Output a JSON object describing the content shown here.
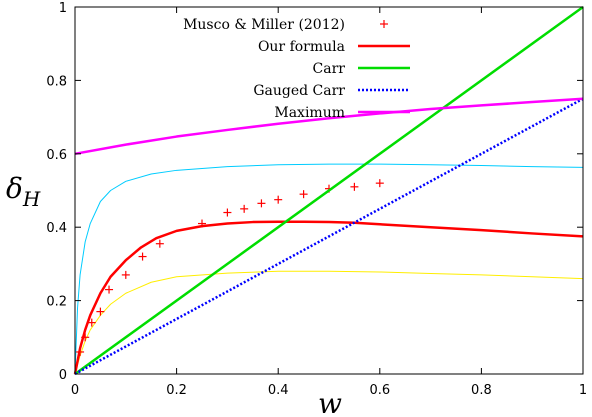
{
  "chart_data": {
    "type": "line",
    "xlabel": "w",
    "ylabel": "δ",
    "ylabel_sub": "H",
    "xlim": [
      0,
      1
    ],
    "ylim": [
      0,
      1
    ],
    "x_ticks": [
      0,
      0.2,
      0.4,
      0.6,
      0.8,
      1
    ],
    "x_tick_labels": [
      "0",
      "0.2",
      "0.4",
      "0.6",
      "0.8",
      "1"
    ],
    "y_ticks": [
      0,
      0.2,
      0.4,
      0.6,
      0.8,
      1
    ],
    "y_tick_labels": [
      "0",
      "0.2",
      "0.4",
      "0.6",
      "0.8",
      "1"
    ],
    "grid": false,
    "legend_position": "top-right",
    "series": [
      {
        "name": "Musco & Miller (2012)",
        "kind": "scatter",
        "color": "#ff0000",
        "x": [
          0.01,
          0.02,
          0.033,
          0.05,
          0.067,
          0.1,
          0.133,
          0.167,
          0.25,
          0.3,
          0.333,
          0.367,
          0.4,
          0.45,
          0.5,
          0.55,
          0.6
        ],
        "y": [
          0.06,
          0.1,
          0.14,
          0.17,
          0.23,
          0.27,
          0.32,
          0.355,
          0.41,
          0.44,
          0.45,
          0.465,
          0.475,
          0.49,
          0.505,
          0.51,
          0.52
        ]
      },
      {
        "name": "Our formula",
        "kind": "line",
        "color": "#ff0000",
        "x": [
          0,
          0.01,
          0.02,
          0.03,
          0.05,
          0.07,
          0.1,
          0.13,
          0.16,
          0.2,
          0.25,
          0.3,
          0.35,
          0.4,
          0.45,
          0.5,
          0.55,
          0.6,
          0.7,
          0.8,
          0.9,
          1.0
        ],
        "y": [
          0,
          0.07,
          0.12,
          0.16,
          0.22,
          0.265,
          0.31,
          0.345,
          0.37,
          0.39,
          0.403,
          0.41,
          0.414,
          0.415,
          0.415,
          0.414,
          0.412,
          0.408,
          0.4,
          0.392,
          0.383,
          0.375
        ]
      },
      {
        "name": "Carr",
        "kind": "line",
        "color": "#00dd00",
        "x": [
          0,
          1
        ],
        "y": [
          0,
          1
        ]
      },
      {
        "name": "Gauged Carr",
        "kind": "dotted",
        "color": "#0000ff",
        "x": [
          0,
          1
        ],
        "y": [
          0,
          0.75
        ]
      },
      {
        "name": "Maximum",
        "kind": "line",
        "color": "#ff00ff",
        "x": [
          0,
          0.1,
          0.2,
          0.3,
          0.4,
          0.5,
          0.6,
          0.7,
          0.8,
          0.9,
          1.0
        ],
        "y": [
          0.6,
          0.625,
          0.647,
          0.665,
          0.682,
          0.697,
          0.71,
          0.722,
          0.732,
          0.741,
          0.75
        ]
      },
      {
        "kind": "line",
        "color": "#00ccff",
        "x": [
          0,
          0.005,
          0.01,
          0.02,
          0.03,
          0.05,
          0.07,
          0.1,
          0.15,
          0.2,
          0.3,
          0.4,
          0.5,
          0.6,
          0.7,
          0.8,
          0.9,
          1.0
        ],
        "y": [
          0,
          0.18,
          0.27,
          0.36,
          0.41,
          0.47,
          0.5,
          0.525,
          0.545,
          0.555,
          0.565,
          0.57,
          0.572,
          0.572,
          0.57,
          0.568,
          0.565,
          0.563
        ]
      },
      {
        "kind": "line",
        "color": "#ffee00",
        "x": [
          0,
          0.01,
          0.02,
          0.03,
          0.05,
          0.07,
          0.1,
          0.15,
          0.2,
          0.3,
          0.4,
          0.5,
          0.6,
          0.7,
          0.8,
          0.9,
          1.0
        ],
        "y": [
          0,
          0.05,
          0.09,
          0.12,
          0.16,
          0.19,
          0.22,
          0.25,
          0.265,
          0.275,
          0.28,
          0.28,
          0.278,
          0.274,
          0.27,
          0.265,
          0.26
        ]
      }
    ]
  }
}
